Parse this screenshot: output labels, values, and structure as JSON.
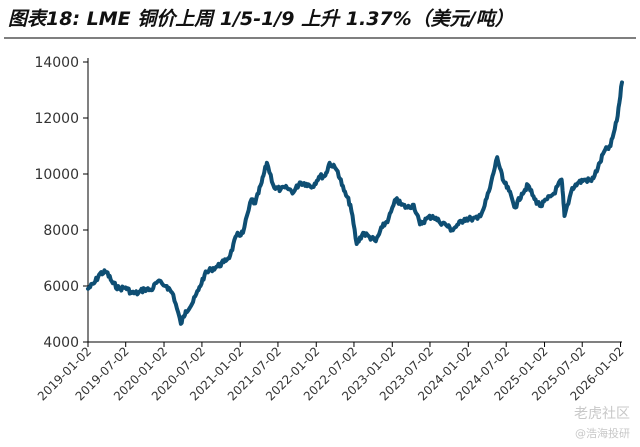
{
  "title": "图表18: LME 铜价上周 1/5-1/9 上升 1.37%（美元/吨）",
  "watermark": {
    "line1": "老虎社区",
    "line2": "@浩海投研"
  },
  "colors": {
    "line": "#0e4e73",
    "axis": "#000000",
    "tick_text": "#333333"
  },
  "chart_data": {
    "type": "line",
    "title": "",
    "xlabel": "",
    "ylabel": "",
    "ylim": [
      4000,
      14000
    ],
    "yticks": [
      4000,
      6000,
      8000,
      10000,
      12000,
      14000
    ],
    "grid": false,
    "legend": "none",
    "xlim": [
      "2019-01-02",
      "2026-01-09"
    ],
    "xticks": [
      "2019-01-02",
      "2019-07-02",
      "2020-01-02",
      "2020-07-02",
      "2021-01-02",
      "2021-07-02",
      "2022-01-02",
      "2022-07-02",
      "2023-01-02",
      "2023-07-02",
      "2024-01-02",
      "2024-07-02",
      "2025-01-02",
      "2025-07-02",
      "2026-01-02"
    ],
    "series": [
      {
        "name": "",
        "x": [
          "2019-01-02",
          "2019-02-01",
          "2019-03-01",
          "2019-04-01",
          "2019-05-01",
          "2019-06-01",
          "2019-07-01",
          "2019-08-01",
          "2019-09-01",
          "2019-10-01",
          "2019-11-01",
          "2019-12-01",
          "2020-01-15",
          "2020-02-15",
          "2020-03-23",
          "2020-04-15",
          "2020-05-15",
          "2020-06-15",
          "2020-07-15",
          "2020-08-15",
          "2020-09-15",
          "2020-10-15",
          "2020-11-15",
          "2020-12-15",
          "2021-01-15",
          "2021-02-25",
          "2021-03-15",
          "2021-04-15",
          "2021-05-10",
          "2021-06-15",
          "2021-07-15",
          "2021-08-15",
          "2021-09-15",
          "2021-10-15",
          "2021-11-15",
          "2021-12-15",
          "2022-01-15",
          "2022-02-15",
          "2022-03-07",
          "2022-04-15",
          "2022-05-15",
          "2022-06-15",
          "2022-07-15",
          "2022-08-15",
          "2022-09-15",
          "2022-10-15",
          "2022-11-15",
          "2022-12-15",
          "2023-01-20",
          "2023-02-15",
          "2023-03-15",
          "2023-04-15",
          "2023-05-15",
          "2023-06-15",
          "2023-07-15",
          "2023-08-15",
          "2023-09-15",
          "2023-10-15",
          "2023-11-15",
          "2023-12-15",
          "2024-01-15",
          "2024-02-15",
          "2024-03-15",
          "2024-04-15",
          "2024-05-20",
          "2024-06-15",
          "2024-07-15",
          "2024-08-15",
          "2024-09-15",
          "2024-10-15",
          "2024-11-15",
          "2024-12-15",
          "2025-01-15",
          "2025-02-15",
          "2025-03-25",
          "2025-04-08",
          "2025-05-15",
          "2025-06-15",
          "2025-07-15",
          "2025-08-15",
          "2025-09-15",
          "2025-10-15",
          "2025-11-15",
          "2025-12-15",
          "2026-01-09"
        ],
        "y": [
          5900,
          6100,
          6450,
          6500,
          6100,
          5900,
          5950,
          5750,
          5750,
          5900,
          5850,
          6150,
          6000,
          5700,
          4650,
          5100,
          5350,
          5850,
          6400,
          6600,
          6700,
          6850,
          7100,
          7800,
          7900,
          9100,
          8950,
          9700,
          10400,
          9500,
          9450,
          9500,
          9350,
          9700,
          9650,
          9550,
          9900,
          9950,
          10400,
          10100,
          9400,
          8900,
          7500,
          7900,
          7750,
          7600,
          8100,
          8400,
          9100,
          8900,
          8800,
          8900,
          8200,
          8400,
          8500,
          8300,
          8200,
          8000,
          8200,
          8400,
          8400,
          8400,
          8750,
          9500,
          10600,
          9800,
          9400,
          8800,
          9300,
          9600,
          9100,
          8850,
          9100,
          9300,
          9800,
          8500,
          9500,
          9700,
          9800,
          9750,
          10200,
          10800,
          11000,
          11900,
          13270
        ]
      }
    ]
  }
}
